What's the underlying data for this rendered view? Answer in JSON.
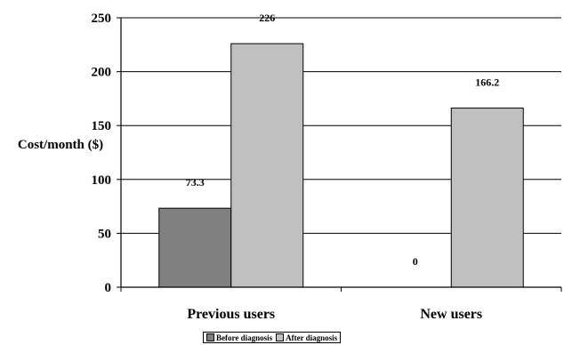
{
  "chart_data": {
    "type": "bar",
    "categories": [
      "Previous users",
      "New users"
    ],
    "series": [
      {
        "name": "Before diagnosis",
        "values": [
          73.3,
          0
        ],
        "color": "#808080"
      },
      {
        "name": "After diagnosis",
        "values": [
          226,
          166.2
        ],
        "color": "#c0c0c0"
      }
    ],
    "data_labels": [
      [
        "73.3",
        "0"
      ],
      [
        "226",
        "166.2"
      ]
    ],
    "title": "",
    "xlabel": "",
    "ylabel": "Cost/month ($)",
    "ylim": [
      0,
      250
    ],
    "yticks": [
      0,
      50,
      100,
      150,
      200,
      250
    ],
    "grid": true,
    "legend_position": "bottom-center"
  }
}
